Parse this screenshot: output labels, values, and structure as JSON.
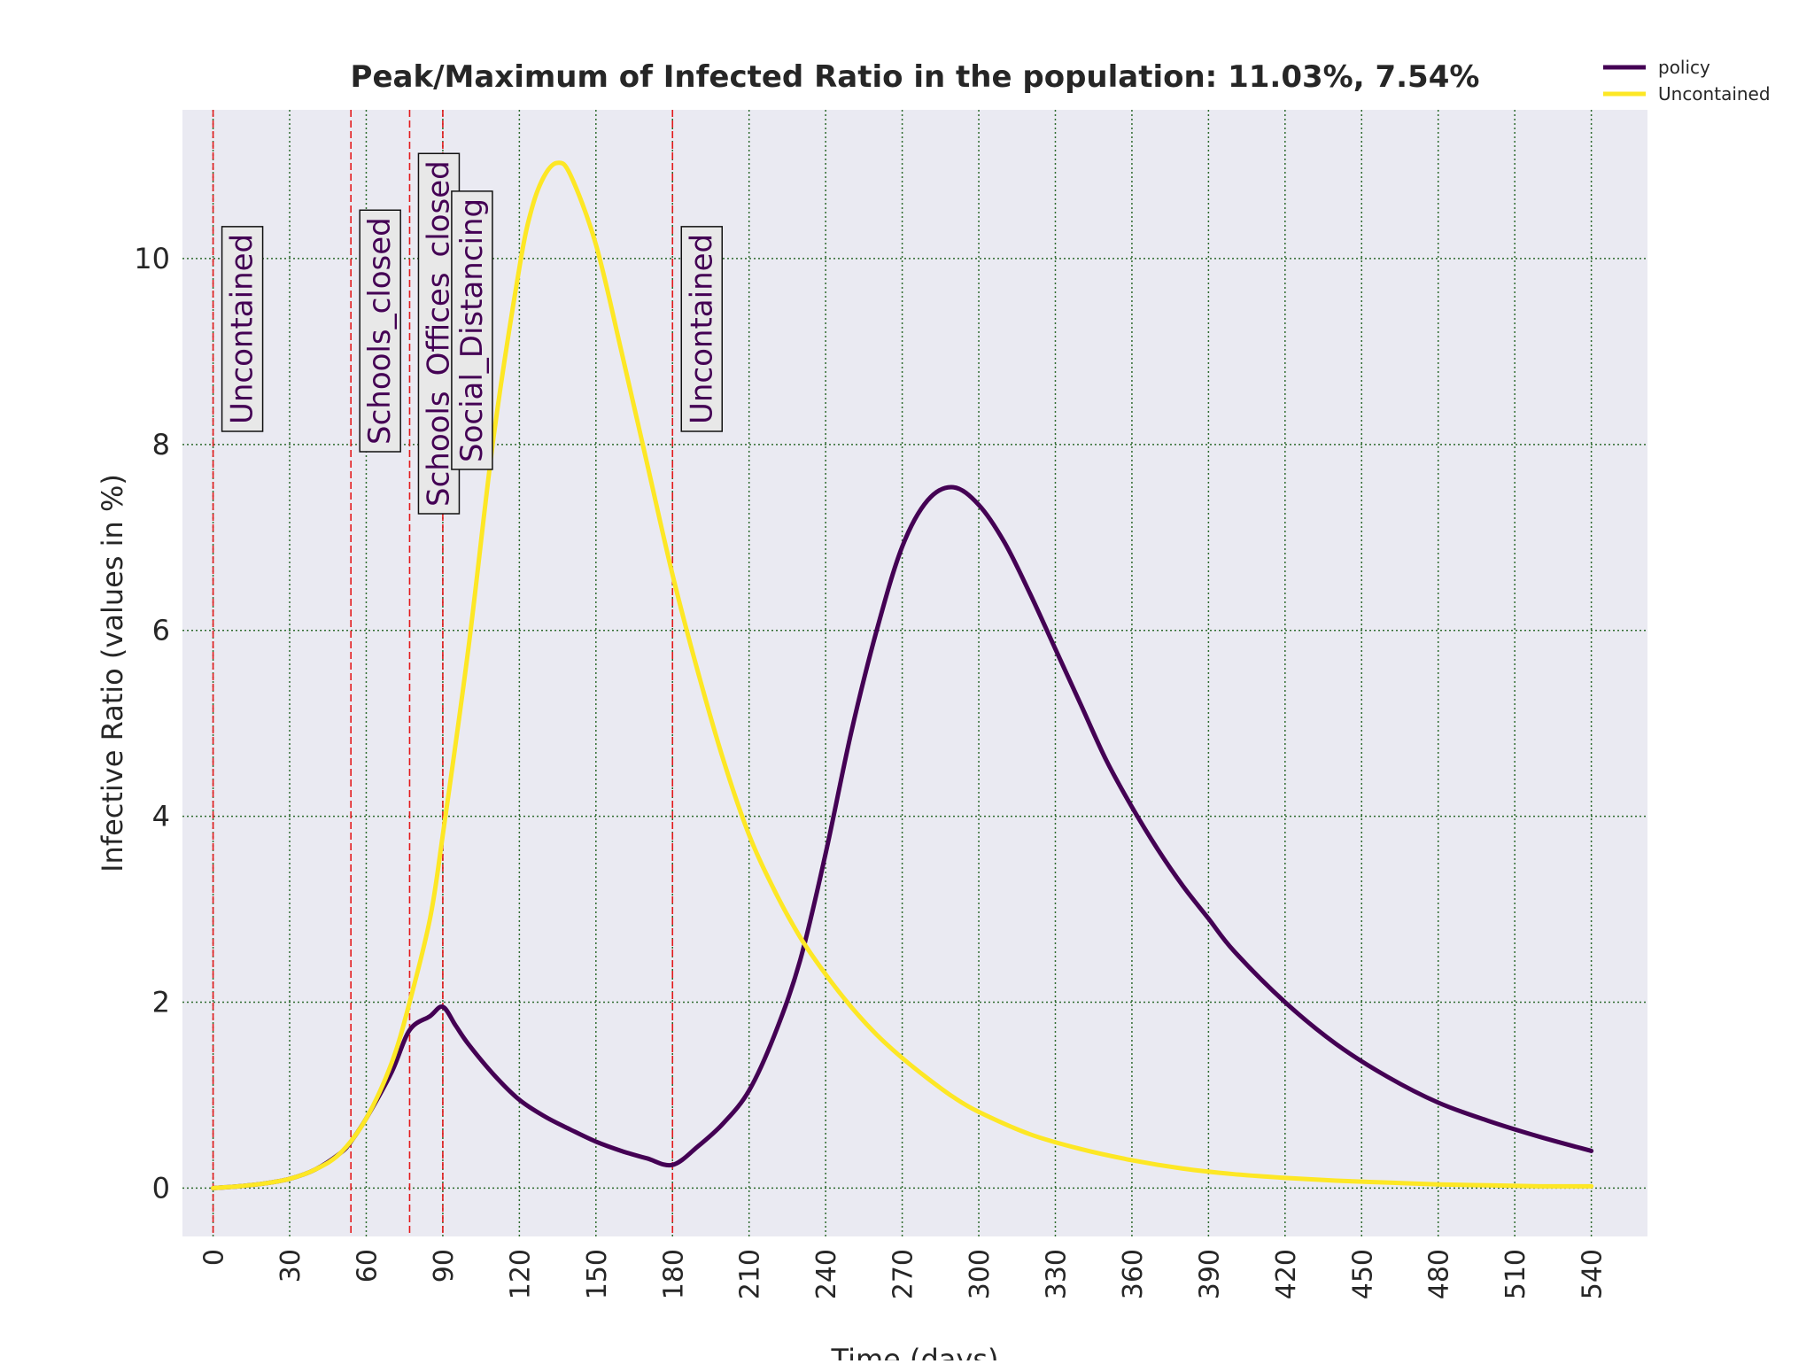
{
  "chart_data": {
    "type": "line",
    "title": "Peak/Maximum of Infected Ratio in the population: 11.03%, 7.54%",
    "xlabel": "Time (days)",
    "ylabel": "Infective Ratio (values in %)",
    "xlim": [
      -12,
      562
    ],
    "ylim": [
      -0.52,
      11.6
    ],
    "x_ticks": [
      0,
      30,
      60,
      90,
      120,
      150,
      180,
      210,
      240,
      270,
      300,
      330,
      360,
      390,
      420,
      450,
      480,
      510,
      540
    ],
    "x_tick_labels": [
      "0",
      "30",
      "60",
      "90",
      "120",
      "150",
      "180",
      "210",
      "240",
      "270",
      "300",
      "330",
      "360",
      "390",
      "420",
      "450",
      "480",
      "510",
      "540"
    ],
    "y_ticks": [
      0,
      2,
      4,
      6,
      8,
      10
    ],
    "y_tick_labels": [
      "0",
      "2",
      "4",
      "6",
      "8",
      "10"
    ],
    "grid": true,
    "legend_position": "top-right",
    "colors": {
      "policy": "#440154",
      "uncontained": "#fde725",
      "policy_marker": "#e31a1c",
      "plot_bg": "#eaeaf2",
      "grid": "#2e6b2e",
      "annotation_text": "#440154",
      "annotation_box": "#e8e8e8"
    },
    "series": [
      {
        "name": "policy",
        "color": "#440154",
        "x": [
          0,
          10,
          20,
          30,
          40,
          50,
          54,
          60,
          70,
          77,
          85,
          90,
          95,
          100,
          110,
          120,
          130,
          140,
          150,
          160,
          170,
          180,
          190,
          200,
          210,
          220,
          230,
          240,
          250,
          260,
          270,
          280,
          290,
          300,
          310,
          320,
          330,
          340,
          350,
          360,
          370,
          380,
          390,
          400,
          420,
          440,
          460,
          480,
          500,
          520,
          540
        ],
        "y": [
          0,
          0.02,
          0.05,
          0.1,
          0.2,
          0.38,
          0.5,
          0.75,
          1.25,
          1.7,
          1.85,
          1.95,
          1.75,
          1.55,
          1.22,
          0.95,
          0.77,
          0.63,
          0.5,
          0.4,
          0.32,
          0.25,
          0.45,
          0.7,
          1.05,
          1.65,
          2.45,
          3.6,
          4.9,
          6.0,
          6.9,
          7.4,
          7.54,
          7.35,
          6.95,
          6.4,
          5.8,
          5.2,
          4.6,
          4.1,
          3.65,
          3.25,
          2.9,
          2.55,
          2.0,
          1.55,
          1.2,
          0.92,
          0.72,
          0.55,
          0.4
        ]
      },
      {
        "name": "Uncontained",
        "color": "#fde725",
        "x": [
          0,
          10,
          20,
          30,
          40,
          50,
          60,
          70,
          77,
          85,
          90,
          100,
          110,
          120,
          125,
          130,
          135,
          140,
          150,
          160,
          170,
          180,
          190,
          200,
          210,
          220,
          230,
          240,
          250,
          260,
          270,
          280,
          290,
          300,
          320,
          340,
          360,
          380,
          400,
          420,
          440,
          460,
          480,
          500,
          520,
          540
        ],
        "y": [
          0,
          0.02,
          0.05,
          0.1,
          0.2,
          0.38,
          0.75,
          1.35,
          2.0,
          2.9,
          3.8,
          5.8,
          8.1,
          9.9,
          10.55,
          10.9,
          11.03,
          10.9,
          10.15,
          9.0,
          7.8,
          6.6,
          5.55,
          4.6,
          3.8,
          3.2,
          2.7,
          2.3,
          1.95,
          1.65,
          1.4,
          1.18,
          0.98,
          0.82,
          0.58,
          0.42,
          0.3,
          0.21,
          0.15,
          0.11,
          0.08,
          0.06,
          0.04,
          0.03,
          0.02,
          0.02
        ]
      }
    ],
    "policy_changes": [
      {
        "day": 0,
        "label": "Uncontained"
      },
      {
        "day": 54,
        "label": "Schools_closed"
      },
      {
        "day": 77,
        "label": "Schools_Offices_closed"
      },
      {
        "day": 90,
        "label": "Social_Distancing"
      },
      {
        "day": 180,
        "label": "Uncontained"
      }
    ]
  }
}
